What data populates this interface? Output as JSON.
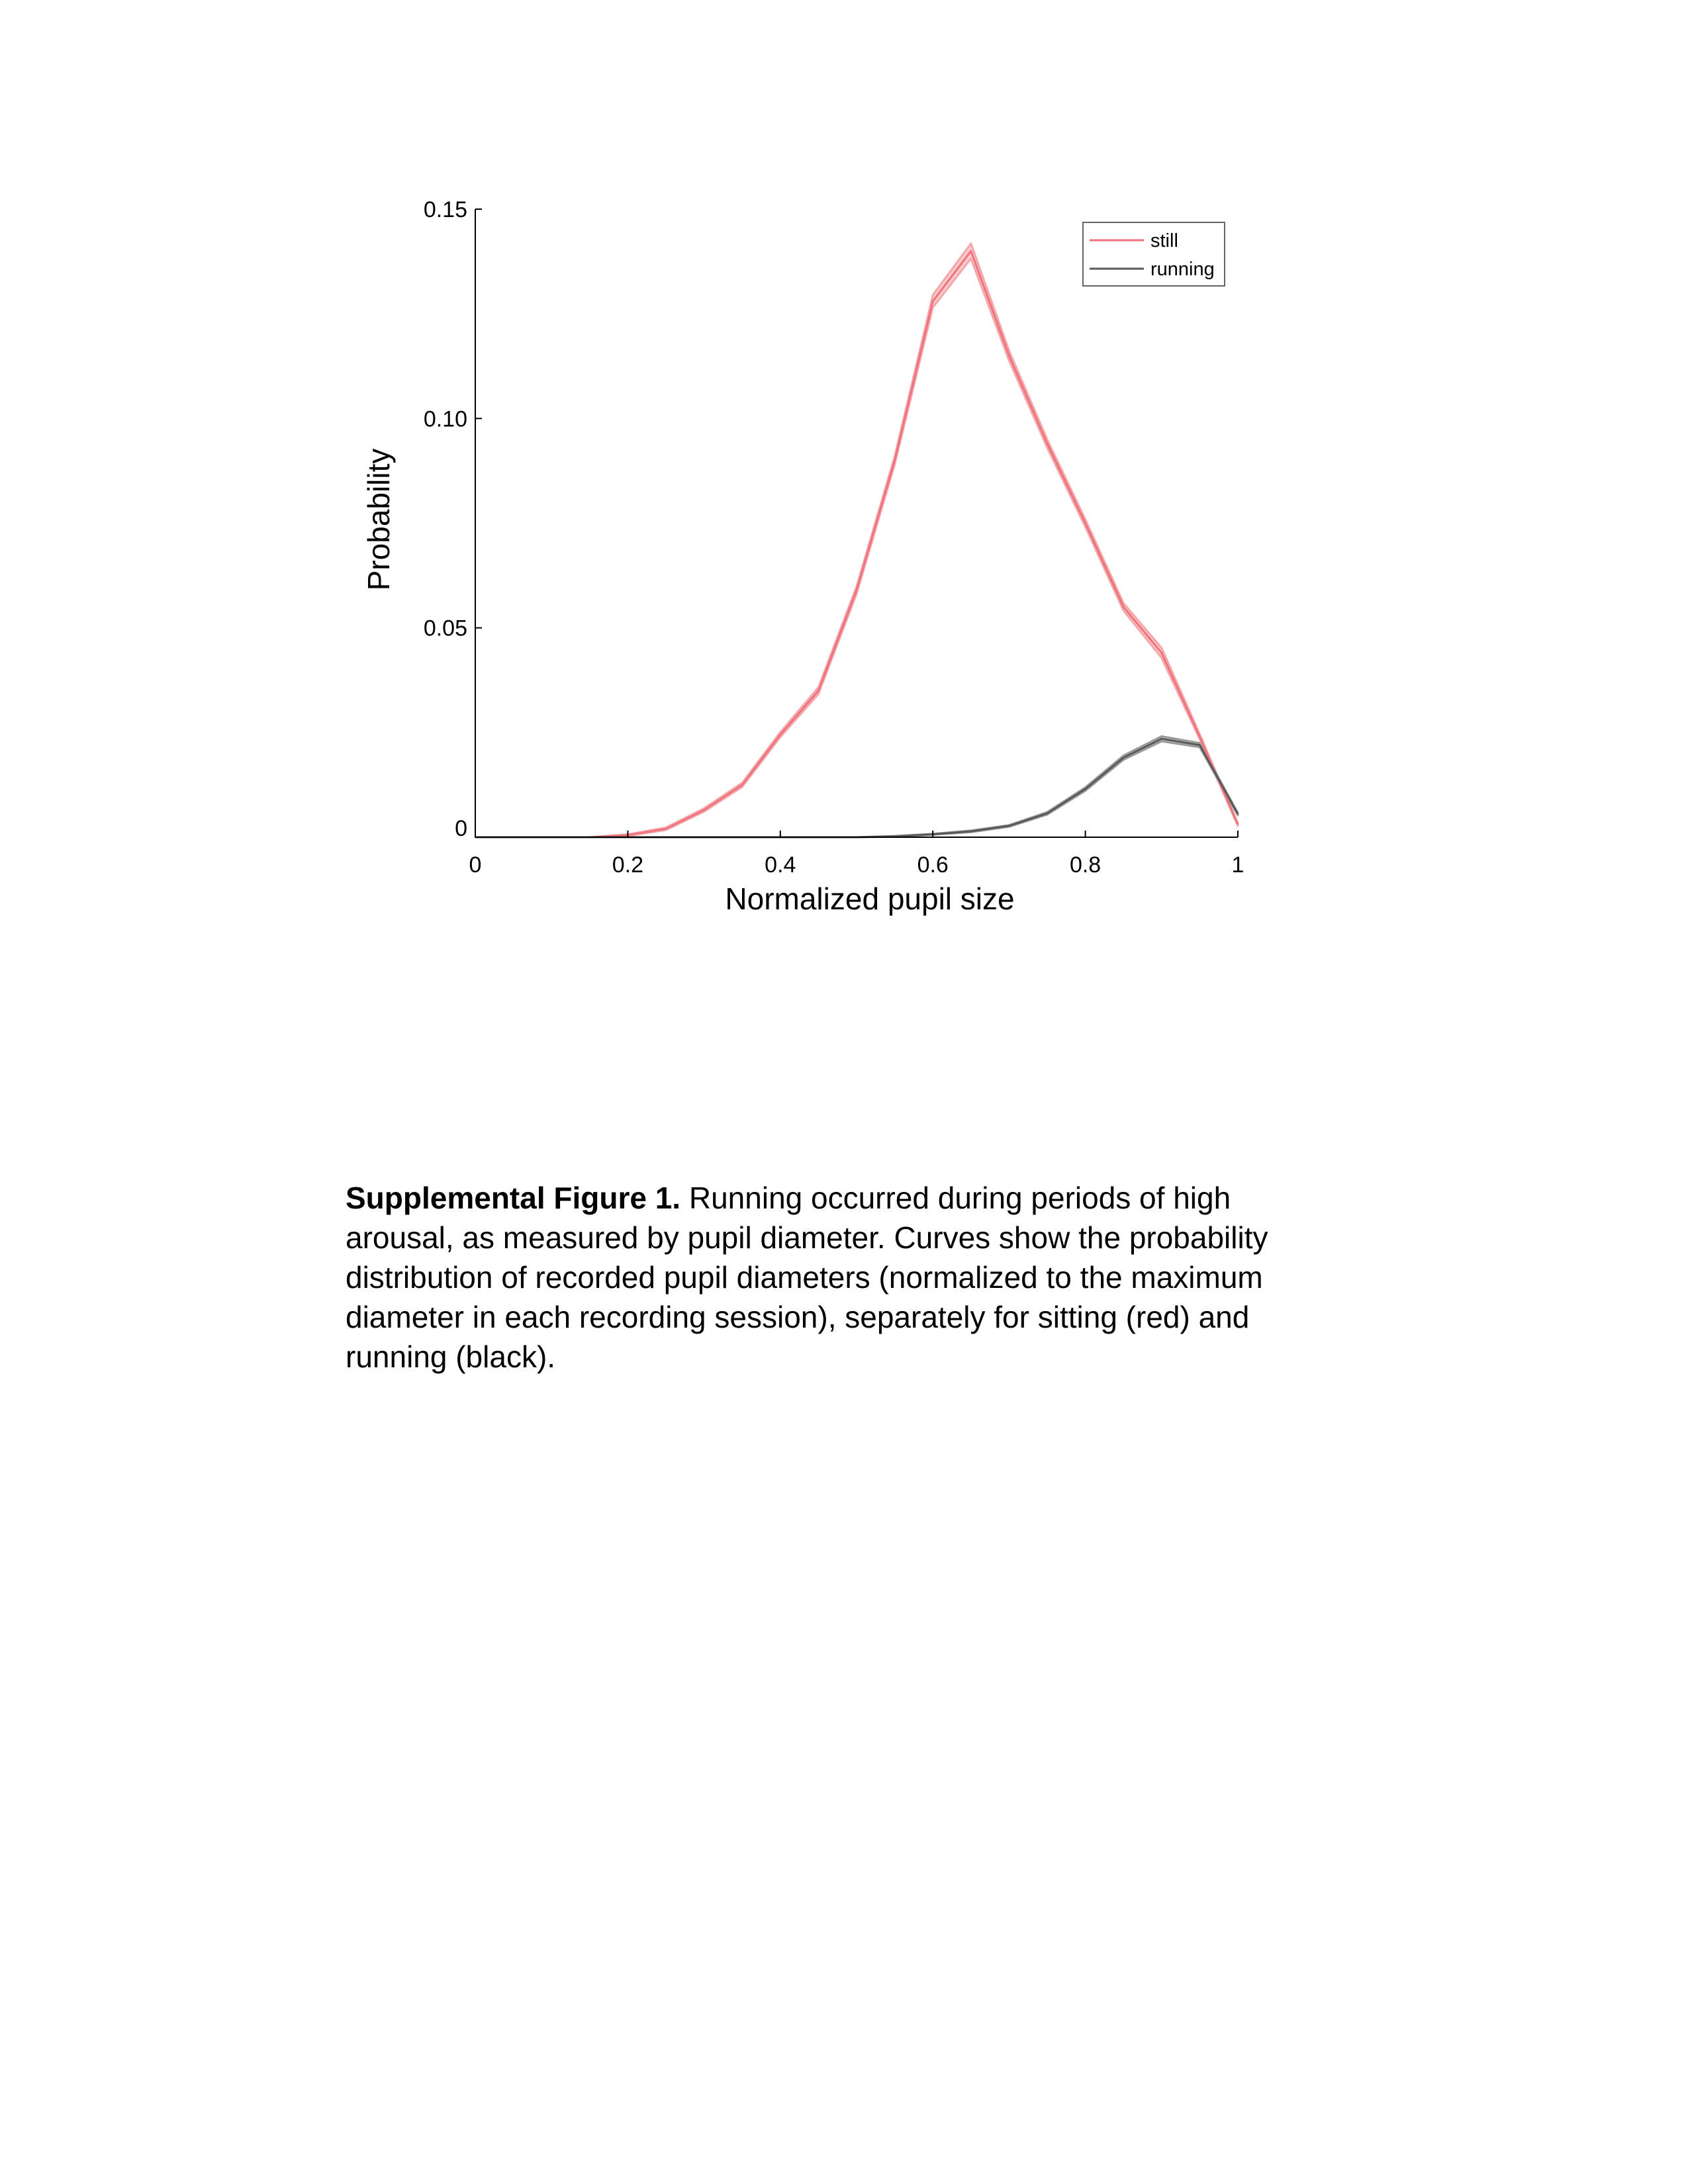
{
  "chart_data": {
    "type": "line",
    "title": "",
    "xlabel": "Normalized pupil size",
    "ylabel": "Probability",
    "xlim": [
      0,
      1
    ],
    "ylim": [
      0,
      0.15
    ],
    "xticks": [
      0,
      0.2,
      0.4,
      0.6,
      0.8,
      1
    ],
    "xtick_labels": [
      "0",
      "0.2",
      "0.4",
      "0.6",
      "0.8",
      "1"
    ],
    "yticks": [
      0,
      0.05,
      0.1,
      0.15
    ],
    "ytick_labels": [
      "0",
      "0.05",
      "0.10",
      "0.15"
    ],
    "grid": false,
    "legend_position": "top-right",
    "x": [
      0,
      0.05,
      0.1,
      0.15,
      0.2,
      0.25,
      0.3,
      0.35,
      0.4,
      0.45,
      0.5,
      0.55,
      0.6,
      0.65,
      0.7,
      0.75,
      0.8,
      0.85,
      0.9,
      0.95,
      1.0
    ],
    "series": [
      {
        "name": "still",
        "color": "#f0727a",
        "band_color": "#f4a7ac",
        "values": [
          0,
          0,
          0,
          0,
          0.0005,
          0.002,
          0.0065,
          0.0125,
          0.0245,
          0.035,
          0.059,
          0.09,
          0.128,
          0.14,
          0.115,
          0.094,
          0.075,
          0.055,
          0.044,
          0.024,
          0.003
        ],
        "band_halfwidth": [
          0,
          0,
          0,
          0,
          0.0002,
          0.0003,
          0.0004,
          0.0005,
          0.0006,
          0.0008,
          0.0009,
          0.001,
          0.0015,
          0.0018,
          0.0012,
          0.001,
          0.0009,
          0.0009,
          0.0012,
          0.0006,
          0.0003
        ]
      },
      {
        "name": "running",
        "color": "#595959",
        "band_color": "#9a9a9a",
        "values": [
          0,
          0,
          0,
          0,
          0,
          0,
          0,
          0,
          0,
          0,
          0,
          0.0002,
          0.0007,
          0.0014,
          0.0027,
          0.0057,
          0.0115,
          0.019,
          0.0235,
          0.022,
          0.0055
        ],
        "band_halfwidth": [
          0,
          0,
          0,
          0,
          0,
          0,
          0,
          0,
          0,
          0,
          0,
          0.0001,
          0.0001,
          0.0002,
          0.0002,
          0.0003,
          0.0004,
          0.0005,
          0.0006,
          0.0005,
          0.0003
        ]
      }
    ]
  },
  "caption": {
    "label": "Supplemental Figure 1.",
    "text": " Running occurred during periods of high arousal, as measured by pupil diameter. Curves show the probability distribution of recorded pupil diameters (normalized to the maximum diameter in each recording session), separately for sitting (red) and running (black)."
  }
}
